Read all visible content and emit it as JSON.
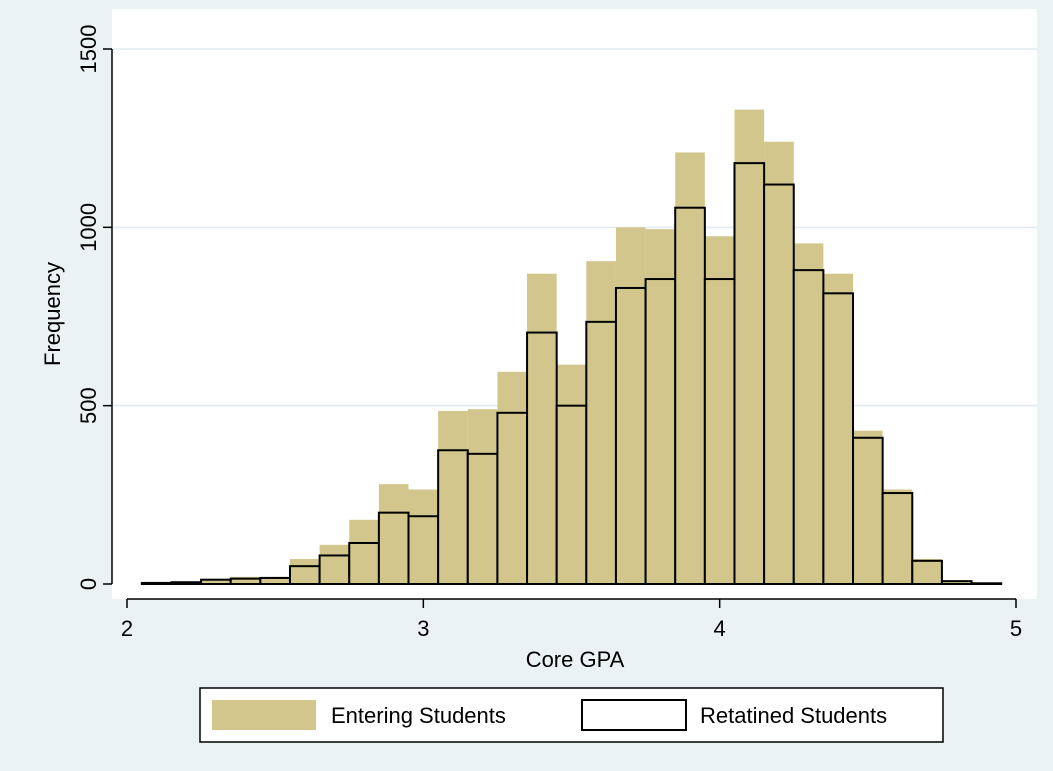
{
  "chart_data": {
    "type": "bar",
    "xlabel": "Core GPA",
    "ylabel": "Frequency",
    "xlim": [
      2,
      5
    ],
    "ylim": [
      0,
      1500
    ],
    "x_ticks": [
      2,
      3,
      4,
      5
    ],
    "y_ticks": [
      0,
      500,
      1000,
      1500
    ],
    "grid": "horizontal",
    "legend_position": "bottom",
    "bin_width": 0.1,
    "bins": [
      2.1,
      2.2,
      2.3,
      2.4,
      2.5,
      2.6,
      2.7,
      2.8,
      2.9,
      3.0,
      3.1,
      3.2,
      3.3,
      3.4,
      3.5,
      3.6,
      3.7,
      3.8,
      3.9,
      4.0,
      4.1,
      4.2,
      4.3,
      4.4,
      4.5,
      4.6,
      4.7,
      4.8,
      4.9
    ],
    "series": [
      {
        "name": "Entering Students",
        "fill": "#d2c68d",
        "values": [
          5,
          7,
          15,
          20,
          20,
          70,
          110,
          180,
          280,
          265,
          485,
          490,
          595,
          870,
          615,
          905,
          1000,
          995,
          1210,
          975,
          1330,
          1240,
          955,
          870,
          430,
          265,
          70,
          10,
          3
        ]
      },
      {
        "name": "Retatined Students",
        "fill": "#d2c68d",
        "stroke": "#000000",
        "values": [
          3,
          5,
          12,
          15,
          17,
          50,
          80,
          115,
          200,
          190,
          375,
          365,
          480,
          705,
          500,
          735,
          830,
          855,
          1055,
          855,
          1180,
          1120,
          880,
          815,
          410,
          255,
          65,
          8,
          2
        ]
      }
    ]
  },
  "colors": {
    "background": "#eaf2f3",
    "plot_area": "#ffffff",
    "gridline": "#e0ecef",
    "bar_fill": "#d2c68d"
  }
}
